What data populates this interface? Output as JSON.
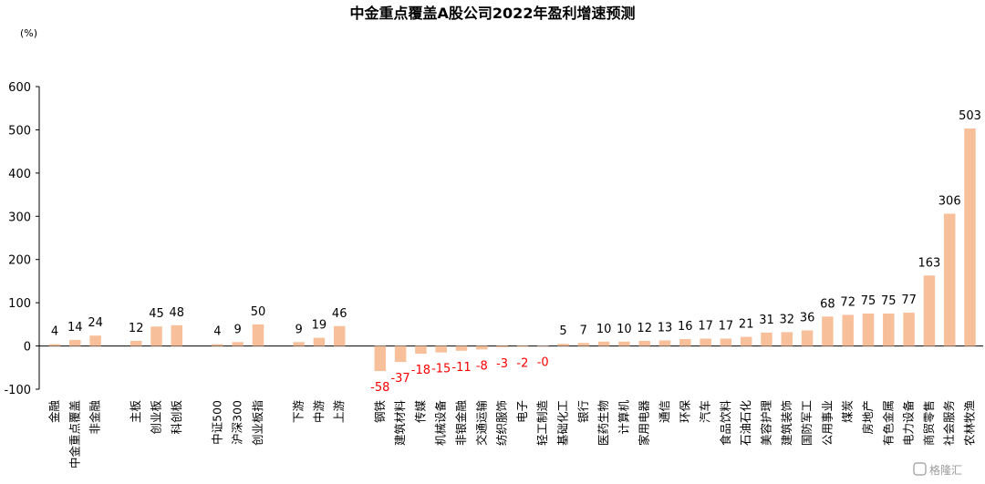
{
  "chart_data": {
    "type": "bar",
    "title": "中金重点覆盖A股公司2022年盈利增速预测",
    "unit_label": "(%)",
    "ylim": [
      -100,
      600
    ],
    "yticks": [
      -100,
      0,
      100,
      200,
      300,
      400,
      500,
      600
    ],
    "grid": false,
    "legend": "none",
    "categories": [
      "金融",
      "中金重点覆盖",
      "非金融",
      "",
      "主板",
      "创业板",
      "科创板",
      "",
      "中证500",
      "沪深300",
      "创业板指",
      "",
      "下游",
      "中游",
      "上游",
      "",
      "钢铁",
      "建筑材料",
      "传媒",
      "机械设备",
      "非银金融",
      "交通运输",
      "纺织服饰",
      "电子",
      "轻工制造",
      "基础化工",
      "银行",
      "医药生物",
      "计算机",
      "家用电器",
      "通信",
      "环保",
      "汽车",
      "食品饮料",
      "石油石化",
      "美容护理",
      "建筑装饰",
      "国防军工",
      "公用事业",
      "煤炭",
      "房地产",
      "有色金属",
      "电力设备",
      "商贸零售",
      "社会服务",
      "农林牧渔"
    ],
    "values": [
      4,
      14,
      24,
      null,
      12,
      45,
      48,
      null,
      4,
      9,
      50,
      null,
      9,
      19,
      46,
      null,
      -58,
      -37,
      -18,
      -15,
      -11,
      -8,
      -3,
      -2,
      -0.3,
      5,
      7,
      10,
      10,
      12,
      13,
      16,
      17,
      17,
      21,
      31,
      32,
      36,
      68,
      72,
      75,
      75,
      77,
      163,
      306,
      503
    ],
    "data_labels": [
      "4",
      "14",
      "24",
      "",
      "12",
      "45",
      "48",
      "",
      "4",
      "9",
      "50",
      "",
      "9",
      "19",
      "46",
      "",
      "-58",
      "-37",
      "-18",
      "-15",
      "-11",
      "-8",
      "-3",
      "-2",
      "-0",
      "5",
      "7",
      "10",
      "10",
      "12",
      "13",
      "16",
      "17",
      "17",
      "21",
      "31",
      "32",
      "36",
      "68",
      "72",
      "75",
      "75",
      "77",
      "163",
      "306",
      "503"
    ]
  },
  "colors": {
    "bar": "#F8C09A",
    "positive_label": "#000000",
    "negative_label": "#FF0000",
    "axis": "#000000"
  },
  "watermark": "格隆汇"
}
